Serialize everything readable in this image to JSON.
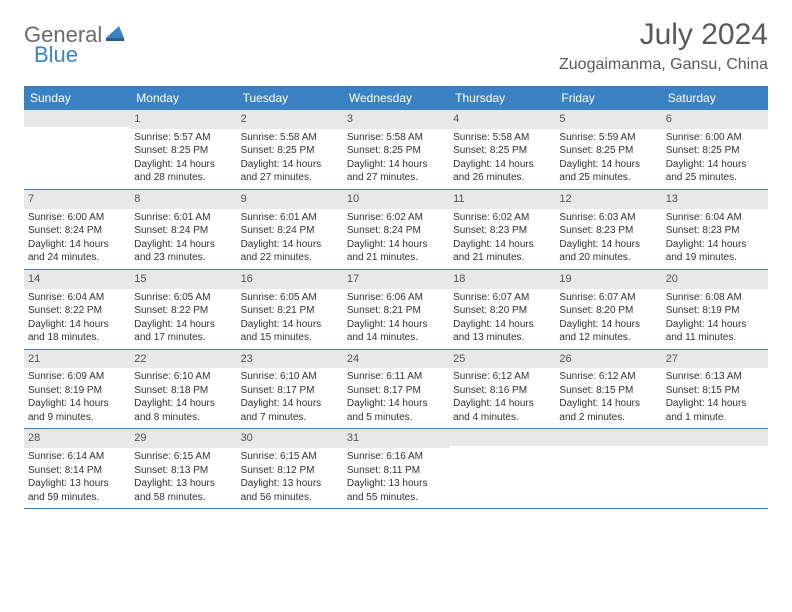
{
  "logo": {
    "part1": "General",
    "part2": "Blue"
  },
  "title": "July 2024",
  "location": "Zuogaimanma, Gansu, China",
  "colors": {
    "header_bg": "#3b82c4",
    "header_text": "#ffffff",
    "daynum_bg": "#e8e8e8",
    "border": "#3b82c4",
    "title_color": "#5a5a5a",
    "logo_gray": "#6b6b6b",
    "logo_blue": "#3b82c4"
  },
  "typography": {
    "title_size": 30,
    "location_size": 16,
    "weekday_size": 12,
    "cell_size": 10
  },
  "weekdays": [
    "Sunday",
    "Monday",
    "Tuesday",
    "Wednesday",
    "Thursday",
    "Friday",
    "Saturday"
  ],
  "weeks": [
    [
      {
        "n": "",
        "sr": "",
        "ss": "",
        "dl": ""
      },
      {
        "n": "1",
        "sr": "Sunrise: 5:57 AM",
        "ss": "Sunset: 8:25 PM",
        "dl": "Daylight: 14 hours and 28 minutes."
      },
      {
        "n": "2",
        "sr": "Sunrise: 5:58 AM",
        "ss": "Sunset: 8:25 PM",
        "dl": "Daylight: 14 hours and 27 minutes."
      },
      {
        "n": "3",
        "sr": "Sunrise: 5:58 AM",
        "ss": "Sunset: 8:25 PM",
        "dl": "Daylight: 14 hours and 27 minutes."
      },
      {
        "n": "4",
        "sr": "Sunrise: 5:58 AM",
        "ss": "Sunset: 8:25 PM",
        "dl": "Daylight: 14 hours and 26 minutes."
      },
      {
        "n": "5",
        "sr": "Sunrise: 5:59 AM",
        "ss": "Sunset: 8:25 PM",
        "dl": "Daylight: 14 hours and 25 minutes."
      },
      {
        "n": "6",
        "sr": "Sunrise: 6:00 AM",
        "ss": "Sunset: 8:25 PM",
        "dl": "Daylight: 14 hours and 25 minutes."
      }
    ],
    [
      {
        "n": "7",
        "sr": "Sunrise: 6:00 AM",
        "ss": "Sunset: 8:24 PM",
        "dl": "Daylight: 14 hours and 24 minutes."
      },
      {
        "n": "8",
        "sr": "Sunrise: 6:01 AM",
        "ss": "Sunset: 8:24 PM",
        "dl": "Daylight: 14 hours and 23 minutes."
      },
      {
        "n": "9",
        "sr": "Sunrise: 6:01 AM",
        "ss": "Sunset: 8:24 PM",
        "dl": "Daylight: 14 hours and 22 minutes."
      },
      {
        "n": "10",
        "sr": "Sunrise: 6:02 AM",
        "ss": "Sunset: 8:24 PM",
        "dl": "Daylight: 14 hours and 21 minutes."
      },
      {
        "n": "11",
        "sr": "Sunrise: 6:02 AM",
        "ss": "Sunset: 8:23 PM",
        "dl": "Daylight: 14 hours and 21 minutes."
      },
      {
        "n": "12",
        "sr": "Sunrise: 6:03 AM",
        "ss": "Sunset: 8:23 PM",
        "dl": "Daylight: 14 hours and 20 minutes."
      },
      {
        "n": "13",
        "sr": "Sunrise: 6:04 AM",
        "ss": "Sunset: 8:23 PM",
        "dl": "Daylight: 14 hours and 19 minutes."
      }
    ],
    [
      {
        "n": "14",
        "sr": "Sunrise: 6:04 AM",
        "ss": "Sunset: 8:22 PM",
        "dl": "Daylight: 14 hours and 18 minutes."
      },
      {
        "n": "15",
        "sr": "Sunrise: 6:05 AM",
        "ss": "Sunset: 8:22 PM",
        "dl": "Daylight: 14 hours and 17 minutes."
      },
      {
        "n": "16",
        "sr": "Sunrise: 6:05 AM",
        "ss": "Sunset: 8:21 PM",
        "dl": "Daylight: 14 hours and 15 minutes."
      },
      {
        "n": "17",
        "sr": "Sunrise: 6:06 AM",
        "ss": "Sunset: 8:21 PM",
        "dl": "Daylight: 14 hours and 14 minutes."
      },
      {
        "n": "18",
        "sr": "Sunrise: 6:07 AM",
        "ss": "Sunset: 8:20 PM",
        "dl": "Daylight: 14 hours and 13 minutes."
      },
      {
        "n": "19",
        "sr": "Sunrise: 6:07 AM",
        "ss": "Sunset: 8:20 PM",
        "dl": "Daylight: 14 hours and 12 minutes."
      },
      {
        "n": "20",
        "sr": "Sunrise: 6:08 AM",
        "ss": "Sunset: 8:19 PM",
        "dl": "Daylight: 14 hours and 11 minutes."
      }
    ],
    [
      {
        "n": "21",
        "sr": "Sunrise: 6:09 AM",
        "ss": "Sunset: 8:19 PM",
        "dl": "Daylight: 14 hours and 9 minutes."
      },
      {
        "n": "22",
        "sr": "Sunrise: 6:10 AM",
        "ss": "Sunset: 8:18 PM",
        "dl": "Daylight: 14 hours and 8 minutes."
      },
      {
        "n": "23",
        "sr": "Sunrise: 6:10 AM",
        "ss": "Sunset: 8:17 PM",
        "dl": "Daylight: 14 hours and 7 minutes."
      },
      {
        "n": "24",
        "sr": "Sunrise: 6:11 AM",
        "ss": "Sunset: 8:17 PM",
        "dl": "Daylight: 14 hours and 5 minutes."
      },
      {
        "n": "25",
        "sr": "Sunrise: 6:12 AM",
        "ss": "Sunset: 8:16 PM",
        "dl": "Daylight: 14 hours and 4 minutes."
      },
      {
        "n": "26",
        "sr": "Sunrise: 6:12 AM",
        "ss": "Sunset: 8:15 PM",
        "dl": "Daylight: 14 hours and 2 minutes."
      },
      {
        "n": "27",
        "sr": "Sunrise: 6:13 AM",
        "ss": "Sunset: 8:15 PM",
        "dl": "Daylight: 14 hours and 1 minute."
      }
    ],
    [
      {
        "n": "28",
        "sr": "Sunrise: 6:14 AM",
        "ss": "Sunset: 8:14 PM",
        "dl": "Daylight: 13 hours and 59 minutes."
      },
      {
        "n": "29",
        "sr": "Sunrise: 6:15 AM",
        "ss": "Sunset: 8:13 PM",
        "dl": "Daylight: 13 hours and 58 minutes."
      },
      {
        "n": "30",
        "sr": "Sunrise: 6:15 AM",
        "ss": "Sunset: 8:12 PM",
        "dl": "Daylight: 13 hours and 56 minutes."
      },
      {
        "n": "31",
        "sr": "Sunrise: 6:16 AM",
        "ss": "Sunset: 8:11 PM",
        "dl": "Daylight: 13 hours and 55 minutes."
      },
      {
        "n": "",
        "sr": "",
        "ss": "",
        "dl": ""
      },
      {
        "n": "",
        "sr": "",
        "ss": "",
        "dl": ""
      },
      {
        "n": "",
        "sr": "",
        "ss": "",
        "dl": ""
      }
    ]
  ]
}
